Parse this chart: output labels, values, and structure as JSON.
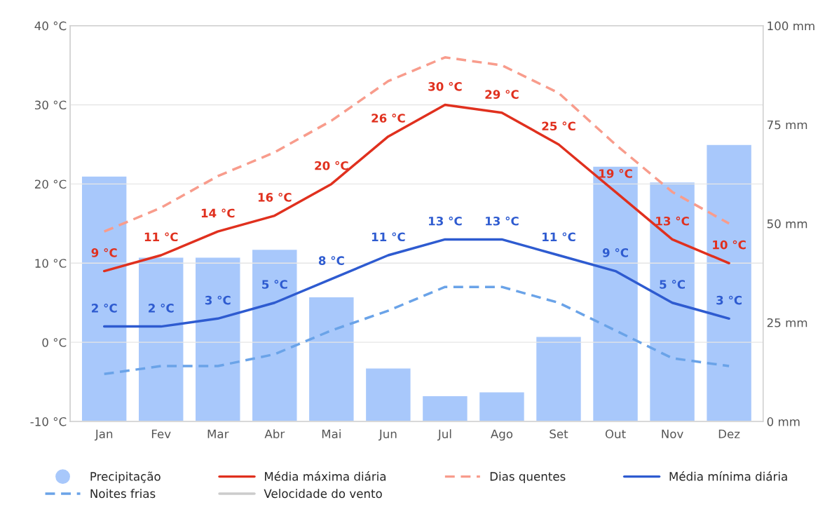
{
  "chart_data": {
    "type": "line",
    "categories": [
      "Jan",
      "Fev",
      "Mar",
      "Abr",
      "Mai",
      "Jun",
      "Jul",
      "Ago",
      "Set",
      "Out",
      "Nov",
      "Dez"
    ],
    "series": [
      {
        "name": "Precipitação",
        "type": "bar",
        "axis": "y2",
        "color": "#a8c8fb",
        "values": [
          62,
          41.5,
          41.5,
          43.5,
          31.5,
          13.5,
          6.5,
          7.5,
          21.5,
          64.5,
          60.5,
          70
        ]
      },
      {
        "name": "Média máxima diária",
        "color": "#e0301e",
        "line_style": "solid",
        "values": [
          9,
          11,
          14,
          16,
          20,
          26,
          30,
          29,
          25,
          19,
          13,
          10
        ],
        "value_labels": [
          "9 °C",
          "11 °C",
          "14 °C",
          "16 °C",
          "20 °C",
          "26 °C",
          "30 °C",
          "29 °C",
          "25 °C",
          "19 °C",
          "13 °C",
          "10 °C"
        ]
      },
      {
        "name": "Dias quentes",
        "color": "#f89c8c",
        "line_style": "dashed",
        "values": [
          14,
          17,
          21,
          24,
          28,
          33,
          36,
          35,
          31.5,
          25,
          19,
          15
        ]
      },
      {
        "name": "Média mínima diária",
        "color": "#2e5bd0",
        "line_style": "solid",
        "values": [
          2,
          2,
          3,
          5,
          8,
          11,
          13,
          13,
          11,
          9,
          5,
          3
        ],
        "value_labels": [
          "2 °C",
          "2 °C",
          "3 °C",
          "5 °C",
          "8 °C",
          "11 °C",
          "13 °C",
          "13 °C",
          "11 °C",
          "9 °C",
          "5 °C",
          "3 °C"
        ]
      },
      {
        "name": "Noites frias",
        "color": "#6aa3e8",
        "line_style": "dashed",
        "values": [
          -4,
          -3,
          -3,
          -1.5,
          1.5,
          4,
          7,
          7,
          5,
          1.5,
          -2,
          -3
        ]
      },
      {
        "name": "Velocidade do vento",
        "color": "#cccccc",
        "line_style": "solid",
        "values": [
          null,
          null,
          null,
          null,
          null,
          null,
          null,
          null,
          null,
          null,
          null,
          null
        ]
      }
    ],
    "ylim": [
      -10,
      40
    ],
    "yticks": [
      {
        "value": -10,
        "label": "-10 °C"
      },
      {
        "value": 0,
        "label": "0 °C"
      },
      {
        "value": 10,
        "label": "10 °C"
      },
      {
        "value": 20,
        "label": "20 °C"
      },
      {
        "value": 30,
        "label": "30 °C"
      },
      {
        "value": 40,
        "label": "40 °C"
      }
    ],
    "y2lim": [
      0,
      100
    ],
    "y2ticks": [
      {
        "value": 0,
        "label": "0 mm"
      },
      {
        "value": 25,
        "label": "25 mm"
      },
      {
        "value": 50,
        "label": "50 mm"
      },
      {
        "value": 75,
        "label": "75 mm"
      },
      {
        "value": 100,
        "label": "100 mm"
      }
    ],
    "grid": "y",
    "legend": "bottom",
    "marker": "none"
  }
}
